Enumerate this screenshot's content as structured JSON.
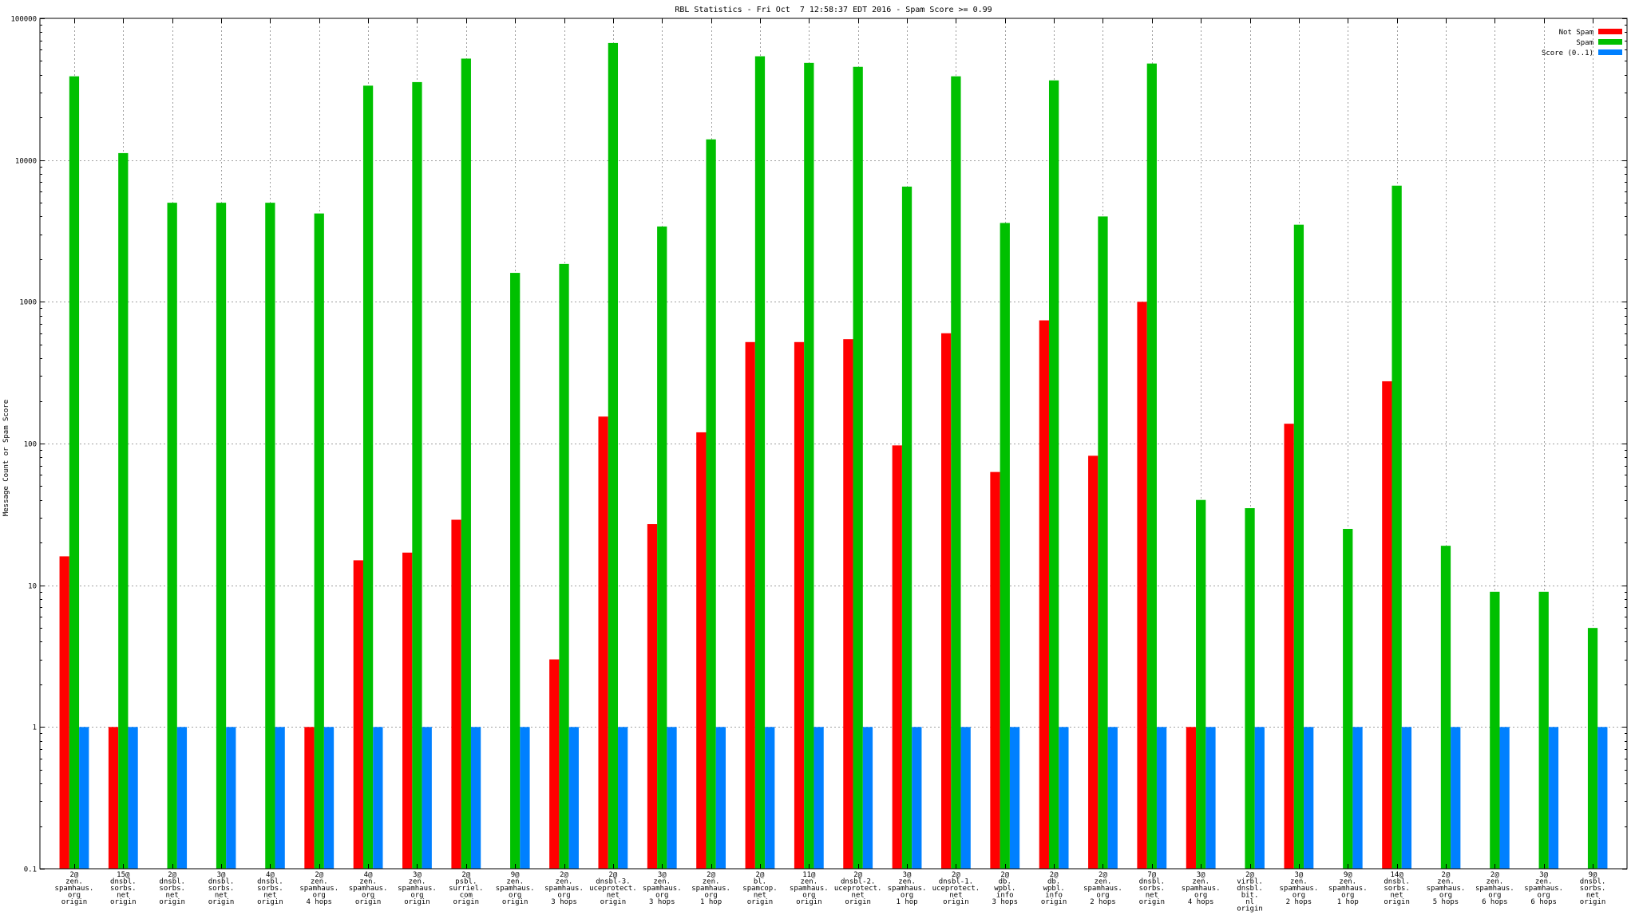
{
  "chart_data": {
    "type": "bar",
    "title": "RBL Statistics - Fri Oct  7 12:58:37 EDT 2016 - Spam Score >= 0.99",
    "xlabel": "",
    "ylabel": "Message Count or Spam Score",
    "y_scale": "log",
    "ylim": [
      0.1,
      100000
    ],
    "y_ticks": [
      {
        "value": 0.1,
        "label": "0.1"
      },
      {
        "value": 1,
        "label": "1"
      },
      {
        "value": 10,
        "label": "10"
      },
      {
        "value": 100,
        "label": "100"
      },
      {
        "value": 1000,
        "label": "1000"
      },
      {
        "value": 10000,
        "label": "10000"
      },
      {
        "value": 100000,
        "label": "100000"
      }
    ],
    "grid": true,
    "legend_position": "top-right",
    "categories": [
      [
        "2@",
        "zen.",
        "spamhaus.",
        "org",
        "origin"
      ],
      [
        "15@",
        "dnsbl.",
        "sorbs.",
        "net",
        "origin"
      ],
      [
        "2@",
        "dnsbl.",
        "sorbs.",
        "net",
        "origin"
      ],
      [
        "3@",
        "dnsbl.",
        "sorbs.",
        "net",
        "origin"
      ],
      [
        "4@",
        "dnsbl.",
        "sorbs.",
        "net",
        "origin"
      ],
      [
        "2@",
        "zen.",
        "spamhaus.",
        "org",
        "4 hops"
      ],
      [
        "4@",
        "zen.",
        "spamhaus.",
        "org",
        "origin"
      ],
      [
        "3@",
        "zen.",
        "spamhaus.",
        "org",
        "origin"
      ],
      [
        "2@",
        "psbl.",
        "surriel.",
        "com",
        "origin"
      ],
      [
        "9@",
        "zen.",
        "spamhaus.",
        "org",
        "origin"
      ],
      [
        "2@",
        "zen.",
        "spamhaus.",
        "org",
        "3 hops"
      ],
      [
        "2@",
        "dnsbl-3.",
        "uceprotect.",
        "net",
        "origin"
      ],
      [
        "3@",
        "zen.",
        "spamhaus.",
        "org",
        "3 hops"
      ],
      [
        "2@",
        "zen.",
        "spamhaus.",
        "org",
        "1 hop"
      ],
      [
        "2@",
        "bl.",
        "spamcop.",
        "net",
        "origin"
      ],
      [
        "11@",
        "zen.",
        "spamhaus.",
        "org",
        "origin"
      ],
      [
        "2@",
        "dnsbl-2.",
        "uceprotect.",
        "net",
        "origin"
      ],
      [
        "3@",
        "zen.",
        "spamhaus.",
        "org",
        "1 hop"
      ],
      [
        "2@",
        "dnsbl-1.",
        "uceprotect.",
        "net",
        "origin"
      ],
      [
        "2@",
        "db.",
        "wpbl.",
        "info",
        "3 hops"
      ],
      [
        "2@",
        "db.",
        "wpbl.",
        "info",
        "origin"
      ],
      [
        "2@",
        "zen.",
        "spamhaus.",
        "org",
        "2 hops"
      ],
      [
        "7@",
        "dnsbl.",
        "sorbs.",
        "net",
        "origin"
      ],
      [
        "3@",
        "zen.",
        "spamhaus.",
        "org",
        "4 hops"
      ],
      [
        "2@",
        "virbl.",
        "dnsbl.",
        "bit.",
        "nl",
        "origin"
      ],
      [
        "3@",
        "zen.",
        "spamhaus.",
        "org",
        "2 hops"
      ],
      [
        "9@",
        "zen.",
        "spamhaus.",
        "org",
        "1 hop"
      ],
      [
        "14@",
        "dnsbl.",
        "sorbs.",
        "net",
        "origin"
      ],
      [
        "2@",
        "zen.",
        "spamhaus.",
        "org",
        "5 hops"
      ],
      [
        "2@",
        "zen.",
        "spamhaus.",
        "org",
        "6 hops"
      ],
      [
        "3@",
        "zen.",
        "spamhaus.",
        "org",
        "6 hops"
      ],
      [
        "9@",
        "dnsbl.",
        "sorbs.",
        "net",
        "origin"
      ]
    ],
    "series": [
      {
        "name": "Not Spam",
        "color": "#ff0000",
        "values": [
          16,
          1,
          null,
          null,
          null,
          1,
          15,
          17,
          29,
          null,
          3,
          155,
          27,
          120,
          520,
          520,
          545,
          97,
          600,
          63,
          740,
          82,
          1000,
          1,
          null,
          138,
          null,
          275,
          null,
          null,
          null,
          null
        ]
      },
      {
        "name": "Spam",
        "color": "#00c000",
        "values": [
          39000,
          11200,
          5000,
          5000,
          5000,
          4200,
          33500,
          35500,
          52000,
          1600,
          1850,
          67000,
          3400,
          14000,
          54000,
          48500,
          45500,
          6500,
          39000,
          3600,
          36500,
          4000,
          48000,
          40,
          35,
          3500,
          25,
          6600,
          19,
          9,
          9,
          5
        ]
      },
      {
        "name": "Score (0..1)",
        "color": "#0080ff",
        "values": [
          1,
          1,
          1,
          1,
          1,
          1,
          1,
          1,
          1,
          1,
          1,
          1,
          1,
          1,
          1,
          1,
          1,
          1,
          1,
          1,
          1,
          1,
          1,
          1,
          1,
          1,
          1,
          1,
          1,
          1,
          1,
          1
        ]
      }
    ]
  }
}
